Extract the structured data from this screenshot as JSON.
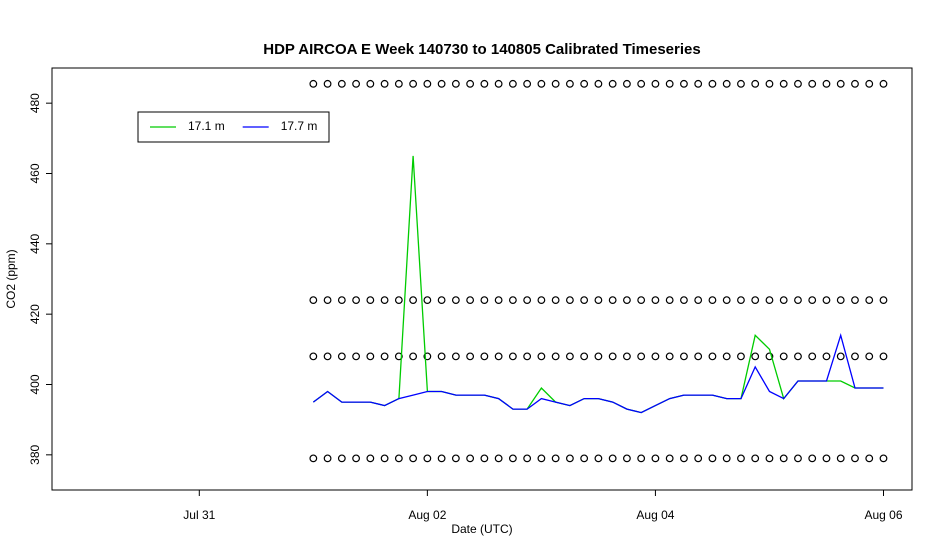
{
  "chart_data": {
    "type": "line",
    "title": "HDP AIRCOA E  Week 140730 to 140805  Calibrated Timeseries",
    "x_label": "Date (UTC)",
    "y_label": "CO2 (ppm)",
    "x": [
      "08-01T00:00",
      "08-01T03:00",
      "08-01T06:00",
      "08-01T09:00",
      "08-01T12:00",
      "08-01T15:00",
      "08-01T18:00",
      "08-01T21:00",
      "08-02T00:00",
      "08-02T03:00",
      "08-02T06:00",
      "08-02T09:00",
      "08-02T12:00",
      "08-02T15:00",
      "08-02T18:00",
      "08-02T21:00",
      "08-03T00:00",
      "08-03T03:00",
      "08-03T06:00",
      "08-03T09:00",
      "08-03T12:00",
      "08-03T15:00",
      "08-03T18:00",
      "08-03T21:00",
      "08-04T00:00",
      "08-04T03:00",
      "08-04T06:00",
      "08-04T09:00",
      "08-04T12:00",
      "08-04T15:00",
      "08-04T18:00",
      "08-04T21:00",
      "08-05T00:00",
      "08-05T03:00",
      "08-05T06:00",
      "08-05T09:00",
      "08-05T12:00",
      "08-05T15:00",
      "08-05T18:00",
      "08-05T21:00",
      "08-06T00:00"
    ],
    "series": [
      {
        "name": "17.1 m",
        "color": "#00cc00",
        "values": [
          395,
          398,
          395,
          395,
          395,
          394,
          396,
          465,
          398,
          398,
          397,
          397,
          397,
          396,
          393,
          393,
          399,
          395,
          394,
          396,
          396,
          395,
          393,
          392,
          394,
          396,
          397,
          397,
          397,
          396,
          396,
          414,
          410,
          396,
          401,
          401,
          401,
          401,
          399,
          399,
          399
        ]
      },
      {
        "name": "17.7 m",
        "color": "#0000ff",
        "values": [
          395,
          398,
          395,
          395,
          395,
          394,
          396,
          397,
          398,
          398,
          397,
          397,
          397,
          396,
          393,
          393,
          396,
          395,
          394,
          396,
          396,
          395,
          393,
          392,
          394,
          396,
          397,
          397,
          397,
          396,
          396,
          405,
          398,
          396,
          401,
          401,
          401,
          414,
          399,
          399,
          399
        ]
      }
    ],
    "reference_rows": {
      "color": "#000000",
      "values": [
        485.5,
        424,
        408,
        379
      ]
    },
    "xlim": [
      "07-29T17:00",
      "08-06T06:00"
    ],
    "xticks": [
      {
        "value": "07-31T00:00",
        "label": "Jul 31"
      },
      {
        "value": "08-02T00:00",
        "label": "Aug 02"
      },
      {
        "value": "08-04T00:00",
        "label": "Aug 04"
      },
      {
        "value": "08-06T00:00",
        "label": "Aug 06"
      }
    ],
    "ylim": [
      370,
      490
    ],
    "yticks": [
      380,
      400,
      420,
      440,
      460,
      480
    ],
    "legend": "top-left"
  }
}
